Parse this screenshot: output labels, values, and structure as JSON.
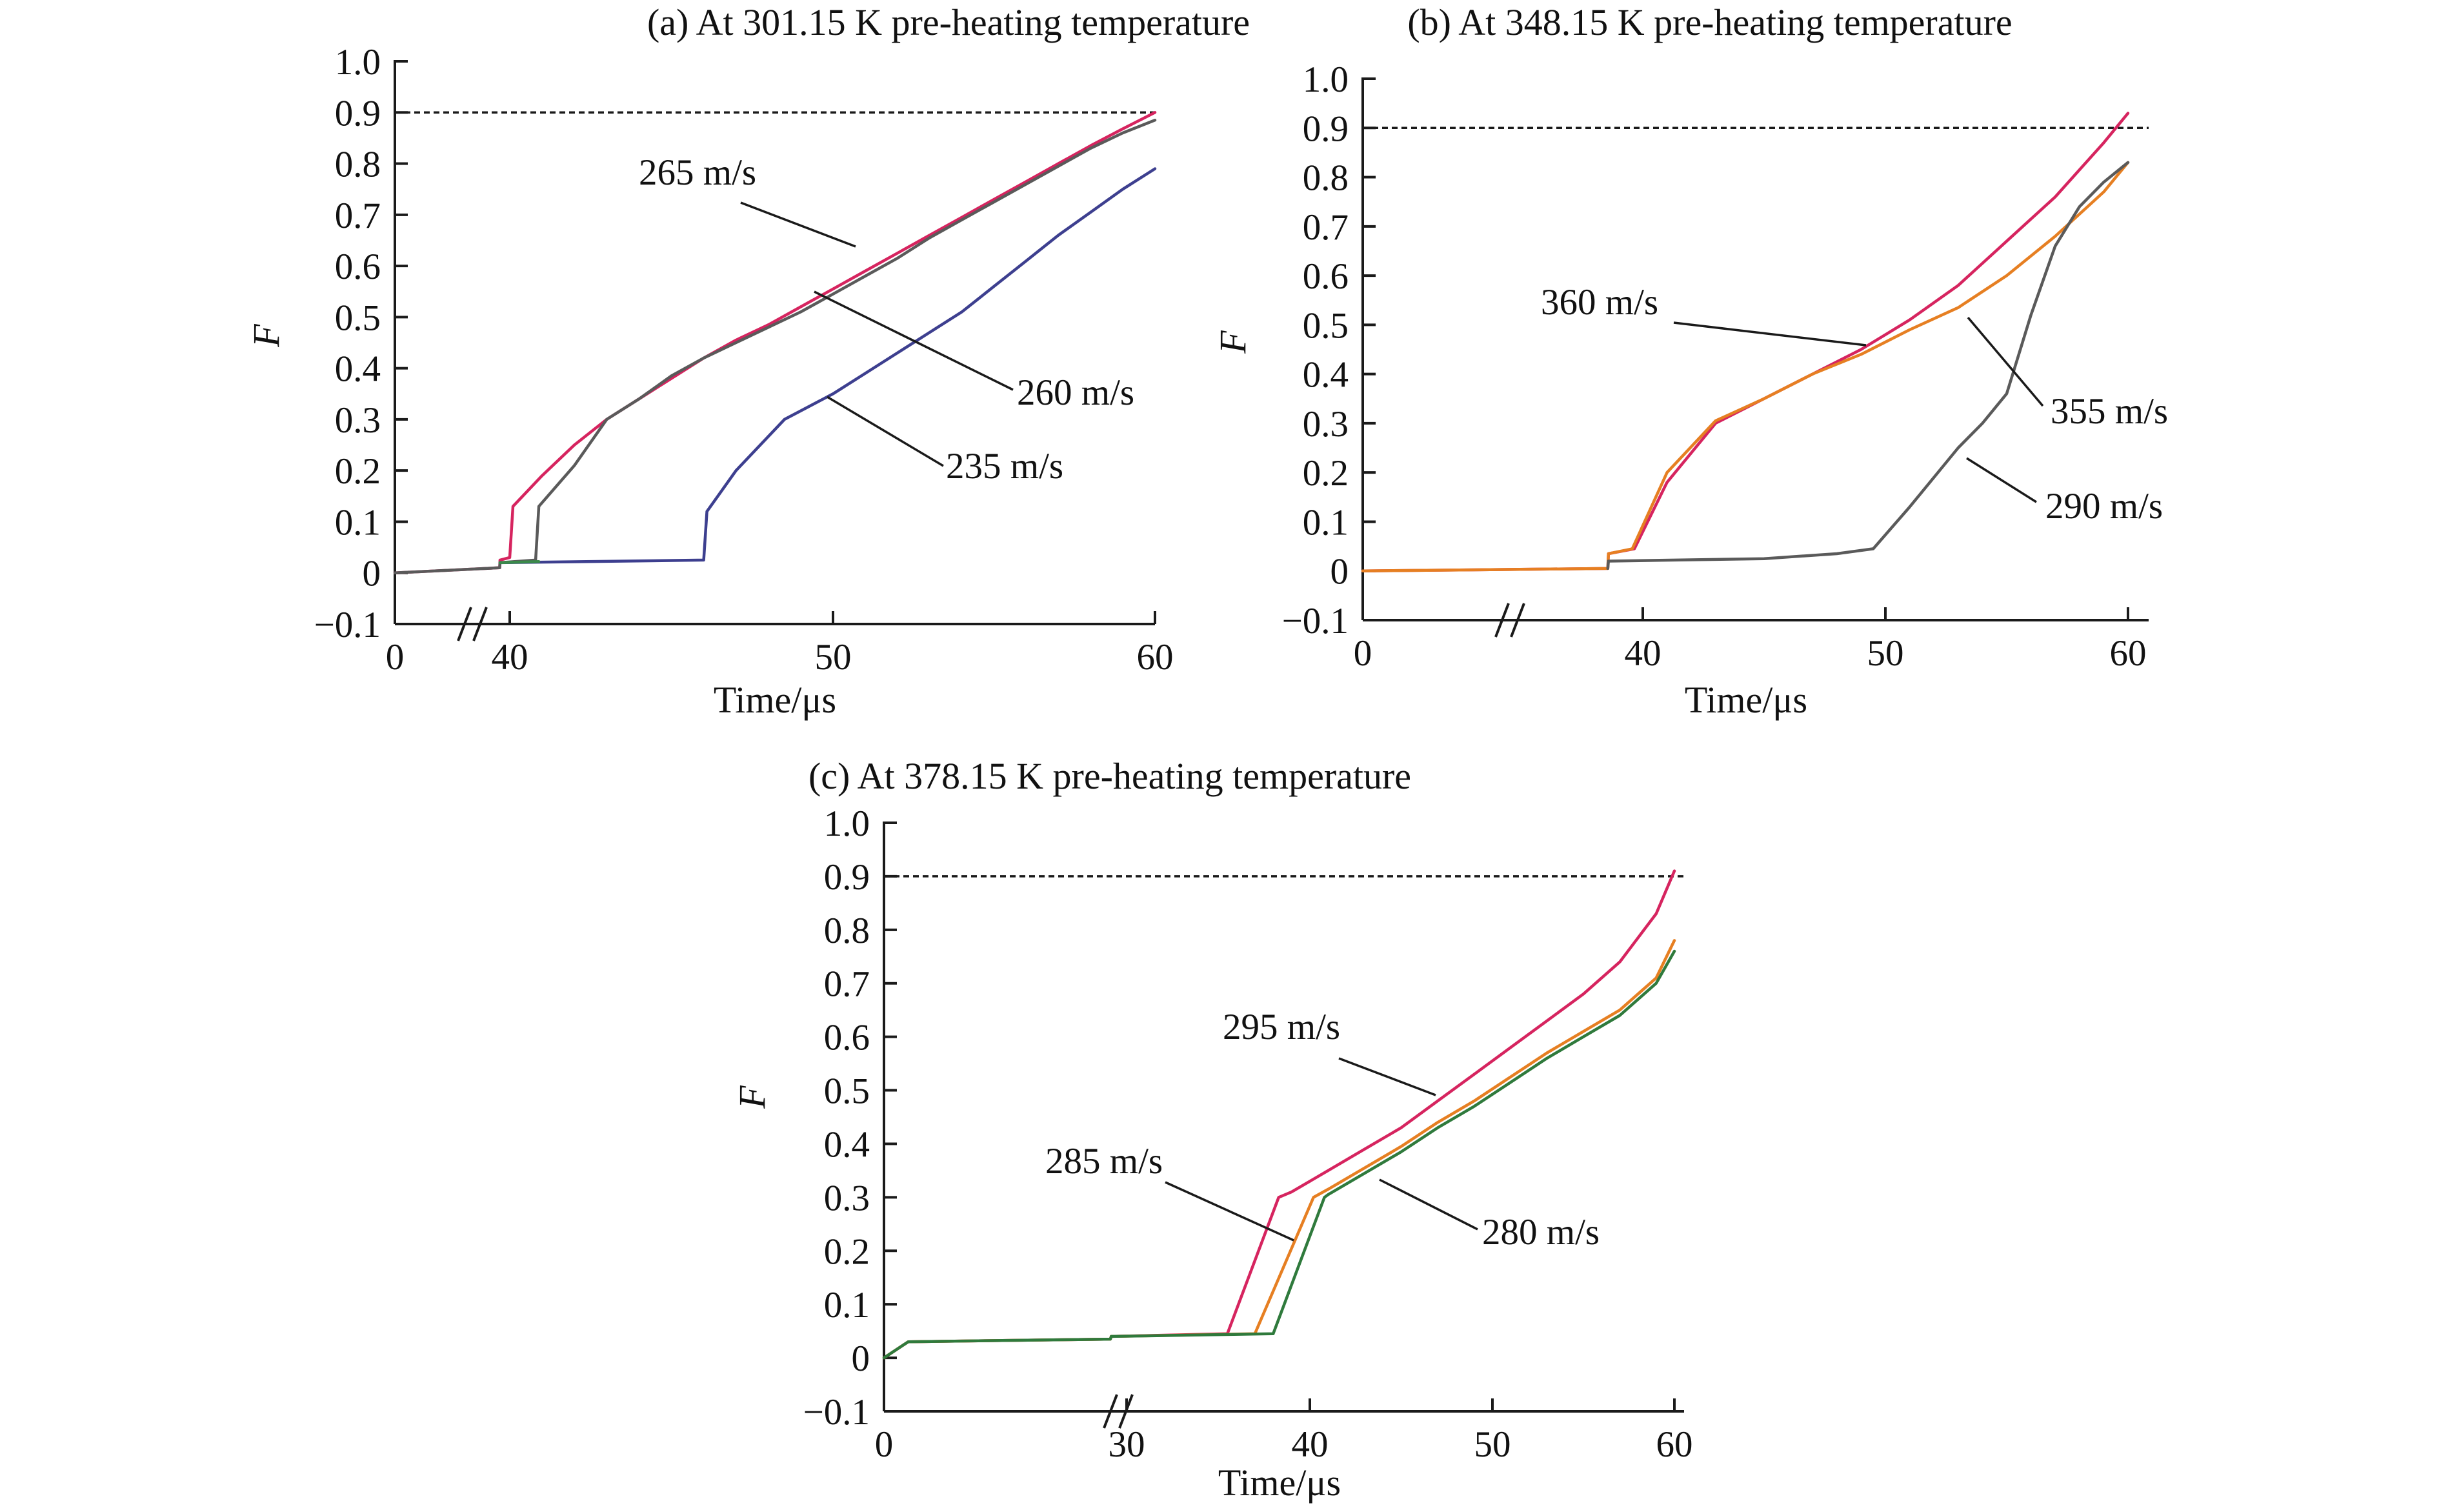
{
  "chart_data": [
    {
      "id": "a",
      "type": "line",
      "title": "(a) At 301.15 K pre-heating temperature",
      "xlabel": "Time/μs",
      "ylabel": "F",
      "ylim": [
        -0.1,
        1.0
      ],
      "yticks": [
        -0.1,
        0,
        0.1,
        0.2,
        0.3,
        0.4,
        0.5,
        0.6,
        0.7,
        0.8,
        0.9,
        1.0
      ],
      "ytick_labels": [
        "−0.1",
        "0",
        "0.1",
        "0.2",
        "0.3",
        "0.4",
        "0.5",
        "0.6",
        "0.7",
        "0.8",
        "0.9",
        "1.0"
      ],
      "xticks": [
        0,
        40,
        50,
        60
      ],
      "xtick_labels": [
        "0",
        "40",
        "50",
        "60"
      ],
      "x_axis_break": true,
      "reference_line_y": 0.9,
      "series": [
        {
          "name": "265 m/s",
          "color": "#d6245f",
          "x": [
            0,
            36.5,
            36.6,
            40.0,
            40.1,
            41,
            42,
            43,
            44,
            45,
            46,
            47,
            48,
            49,
            50,
            51,
            52,
            53,
            54,
            55,
            56,
            57,
            58,
            59,
            60
          ],
          "y": [
            0.0,
            0.01,
            0.025,
            0.03,
            0.13,
            0.19,
            0.25,
            0.3,
            0.34,
            0.38,
            0.42,
            0.455,
            0.485,
            0.52,
            0.555,
            0.59,
            0.625,
            0.66,
            0.695,
            0.73,
            0.765,
            0.8,
            0.835,
            0.868,
            0.9
          ]
        },
        {
          "name": "260 m/s",
          "color": "#5a5a5a",
          "x": [
            0,
            36.5,
            36.6,
            40.8,
            40.9,
            42,
            43,
            44,
            45,
            46,
            47,
            48,
            49,
            50,
            51,
            52,
            53,
            54,
            55,
            56,
            57,
            58,
            59,
            60
          ],
          "y": [
            0.0,
            0.01,
            0.02,
            0.025,
            0.13,
            0.21,
            0.3,
            0.34,
            0.385,
            0.42,
            0.45,
            0.48,
            0.51,
            0.545,
            0.58,
            0.615,
            0.655,
            0.69,
            0.725,
            0.76,
            0.795,
            0.83,
            0.86,
            0.885
          ]
        },
        {
          "name": "235 m/s",
          "color": "#3d3f8f",
          "x": [
            36.6,
            46.0,
            46.1,
            47,
            48.5,
            50,
            51,
            52,
            53,
            54,
            55,
            56,
            57,
            58,
            59,
            60
          ],
          "y": [
            0.02,
            0.025,
            0.12,
            0.2,
            0.3,
            0.35,
            0.39,
            0.43,
            0.47,
            0.51,
            0.56,
            0.61,
            0.66,
            0.705,
            0.75,
            0.79
          ]
        },
        {
          "name": "",
          "color": "#3a8a4a",
          "x": [
            36.6,
            40.9
          ],
          "y": [
            0.02,
            0.022
          ]
        }
      ],
      "annotations": [
        {
          "text": "265 m/s",
          "series": "265 m/s"
        },
        {
          "text": "260 m/s",
          "series": "260 m/s"
        },
        {
          "text": "235 m/s",
          "series": "235 m/s"
        }
      ]
    },
    {
      "id": "b",
      "type": "line",
      "title": "(b) At 348.15 K pre-heating temperature",
      "xlabel": "Time/μs",
      "ylabel": "F",
      "ylim": [
        -0.1,
        1.0
      ],
      "yticks": [
        -0.1,
        0,
        0.1,
        0.2,
        0.3,
        0.4,
        0.5,
        0.6,
        0.7,
        0.8,
        0.9,
        1.0
      ],
      "ytick_labels": [
        "−0.1",
        "0",
        "0.1",
        "0.2",
        "0.3",
        "0.4",
        "0.5",
        "0.6",
        "0.7",
        "0.8",
        "0.9",
        "1.0"
      ],
      "xticks": [
        0,
        40,
        50,
        60
      ],
      "xtick_labels": [
        "0",
        "40",
        "50",
        "60"
      ],
      "x_axis_break": true,
      "reference_line_y": 0.9,
      "series": [
        {
          "name": "360 m/s",
          "color": "#d6245f",
          "x": [
            0,
            35.0,
            35.1,
            38.8,
            41,
            43,
            45,
            47,
            49,
            51,
            53,
            55,
            57,
            59,
            60
          ],
          "y": [
            0.0,
            0.005,
            0.035,
            0.045,
            0.18,
            0.3,
            0.35,
            0.4,
            0.45,
            0.51,
            0.58,
            0.67,
            0.76,
            0.87,
            0.93
          ]
        },
        {
          "name": "355 m/s",
          "color": "#e67f22",
          "x": [
            0,
            35.0,
            35.1,
            38.5,
            41,
            43,
            45,
            47,
            49,
            51,
            53,
            55,
            57,
            59,
            60
          ],
          "y": [
            0.0,
            0.005,
            0.035,
            0.045,
            0.2,
            0.305,
            0.35,
            0.4,
            0.44,
            0.49,
            0.535,
            0.6,
            0.68,
            0.77,
            0.83
          ]
        },
        {
          "name": "290 m/s",
          "color": "#5a5a5a",
          "x": [
            35.0,
            35.1,
            45,
            48,
            49.5,
            51,
            53,
            54,
            55,
            56,
            57,
            58,
            59,
            60
          ],
          "y": [
            0.005,
            0.02,
            0.025,
            0.035,
            0.045,
            0.13,
            0.25,
            0.3,
            0.36,
            0.52,
            0.66,
            0.74,
            0.79,
            0.83
          ]
        }
      ],
      "annotations": [
        {
          "text": "360 m/s",
          "series": "360 m/s"
        },
        {
          "text": "355 m/s",
          "series": "355 m/s"
        },
        {
          "text": "290 m/s",
          "series": "290 m/s"
        }
      ]
    },
    {
      "id": "c",
      "type": "line",
      "title": "(c) At 378.15 K pre-heating temperature",
      "xlabel": "Time/μs",
      "ylabel": "F",
      "ylim": [
        -0.1,
        1.0
      ],
      "yticks": [
        -0.1,
        0,
        0.1,
        0.2,
        0.3,
        0.4,
        0.5,
        0.6,
        0.7,
        0.8,
        0.9,
        1.0
      ],
      "ytick_labels": [
        "−0.1",
        "0",
        "0.1",
        "0.2",
        "0.3",
        "0.4",
        "0.5",
        "0.6",
        "0.7",
        "0.8",
        "0.9",
        "1.0"
      ],
      "xticks": [
        0,
        30,
        40,
        50,
        60
      ],
      "xtick_labels": [
        "0",
        "30",
        "40",
        "50",
        "60"
      ],
      "x_axis_break": true,
      "reference_line_y": 0.9,
      "series": [
        {
          "name": "295 m/s",
          "color": "#d6245f",
          "x": [
            0,
            3,
            28,
            28.1,
            35.5,
            38.3,
            39,
            41,
            43,
            45,
            47,
            49,
            51,
            53,
            55,
            57,
            59,
            60
          ],
          "y": [
            0.0,
            0.03,
            0.035,
            0.04,
            0.045,
            0.3,
            0.31,
            0.35,
            0.39,
            0.43,
            0.48,
            0.53,
            0.58,
            0.63,
            0.68,
            0.74,
            0.83,
            0.91
          ]
        },
        {
          "name": "285 m/s",
          "color": "#e67f22",
          "x": [
            0,
            3,
            28,
            28.1,
            37.0,
            40.2,
            41,
            43,
            45,
            47,
            49,
            51,
            53,
            55,
            57,
            59,
            60
          ],
          "y": [
            0.0,
            0.03,
            0.035,
            0.04,
            0.045,
            0.3,
            0.315,
            0.355,
            0.395,
            0.44,
            0.48,
            0.525,
            0.57,
            0.61,
            0.65,
            0.71,
            0.78
          ]
        },
        {
          "name": "280 m/s",
          "color": "#2f7a3c",
          "x": [
            0,
            3,
            28,
            28.1,
            38.0,
            40.8,
            41,
            43,
            45,
            47,
            49,
            51,
            53,
            55,
            57,
            59,
            60
          ],
          "y": [
            0.0,
            0.03,
            0.035,
            0.04,
            0.045,
            0.3,
            0.305,
            0.345,
            0.385,
            0.43,
            0.47,
            0.515,
            0.56,
            0.6,
            0.64,
            0.7,
            0.76
          ]
        }
      ],
      "annotations": [
        {
          "text": "295 m/s",
          "series": "295 m/s"
        },
        {
          "text": "285 m/s",
          "series": "285 m/s"
        },
        {
          "text": "280 m/s",
          "series": "280 m/s"
        }
      ]
    }
  ]
}
